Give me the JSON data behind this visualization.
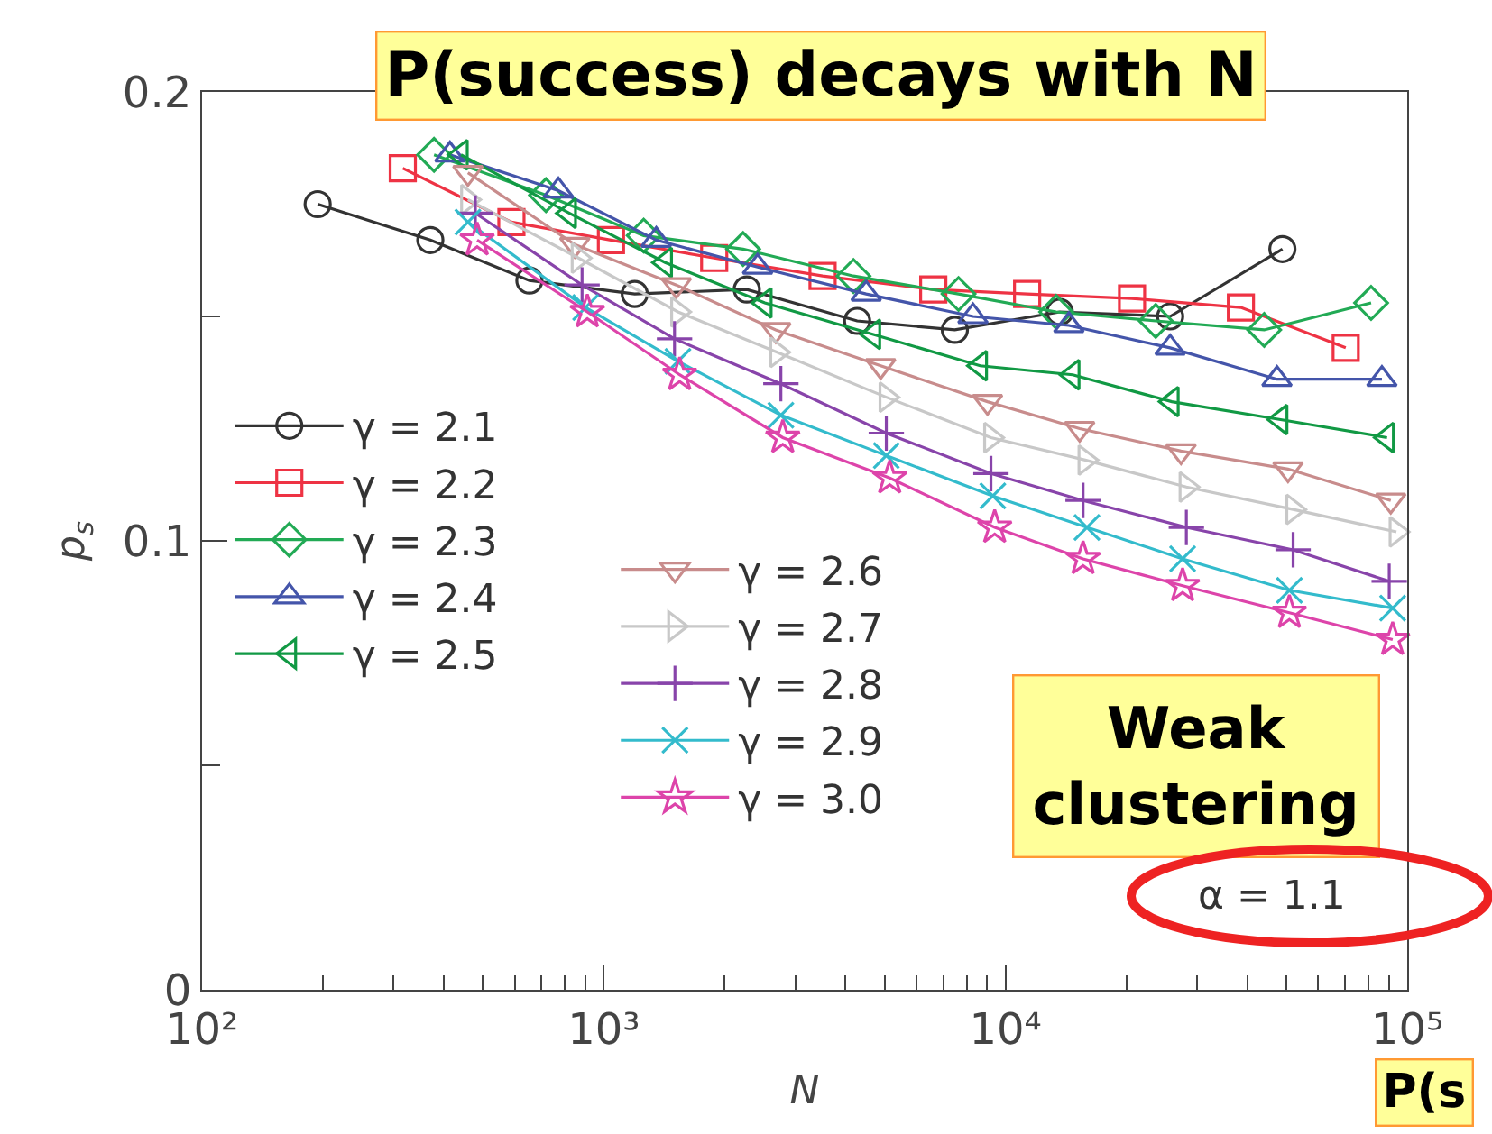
{
  "chart_data": {
    "type": "line",
    "title": "P(success) decays with N",
    "xlabel": "N",
    "ylabel": "p$_{s}$",
    "log": "x",
    "legend": "left",
    "grid": false,
    "xlim": [
      100,
      100000
    ],
    "xticks": [
      {
        "value": 100,
        "label": "10²"
      },
      {
        "value": 200,
        "label": null
      },
      {
        "value": 300,
        "label": null
      },
      {
        "value": 400,
        "label": null
      },
      {
        "value": 500,
        "label": null
      },
      {
        "value": 600,
        "label": null
      },
      {
        "value": 700,
        "label": null
      },
      {
        "value": 800,
        "label": null
      },
      {
        "value": 900,
        "label": null
      },
      {
        "value": 1000,
        "label": "10³"
      },
      {
        "value": 2000,
        "label": null
      },
      {
        "value": 3000,
        "label": null
      },
      {
        "value": 4000,
        "label": null
      },
      {
        "value": 5000,
        "label": null
      },
      {
        "value": 6000,
        "label": null
      },
      {
        "value": 7000,
        "label": null
      },
      {
        "value": 8000,
        "label": null
      },
      {
        "value": 9000,
        "label": null
      },
      {
        "value": 10000,
        "label": "10⁴"
      },
      {
        "value": 20000,
        "label": null
      },
      {
        "value": 30000,
        "label": null
      },
      {
        "value": 40000,
        "label": null
      },
      {
        "value": 50000,
        "label": null
      },
      {
        "value": 60000,
        "label": null
      },
      {
        "value": 70000,
        "label": null
      },
      {
        "value": 80000,
        "label": null
      },
      {
        "value": 90000,
        "label": null
      },
      {
        "value": 100000,
        "label": "10⁵"
      }
    ],
    "ylim": [
      0,
      0.2
    ],
    "yticks": [
      0,
      {
        "value": 0.05,
        "label": null
      },
      0.1,
      {
        "value": 0.15,
        "label": null
      },
      0.2
    ],
    "annotations": [
      "Weak clustering",
      "α = 1.1",
      "P(s"
    ],
    "series": [
      {
        "name": "γ = 2.1",
        "color": "#333333",
        "marker": "circle",
        "x": [
          194,
          370,
          653,
          1194,
          2270,
          4273,
          7480,
          13650,
          25700,
          48900
        ],
        "values": [
          0.175,
          0.167,
          0.158,
          0.155,
          0.156,
          0.149,
          0.147,
          0.151,
          0.15,
          0.165
        ]
      },
      {
        "name": "γ = 2.2",
        "color": "#ee3344",
        "marker": "square",
        "x": [
          316,
          589,
          1042,
          1883,
          3505,
          6610,
          11320,
          20650,
          38550,
          70300
        ],
        "values": [
          0.183,
          0.171,
          0.167,
          0.163,
          0.159,
          0.156,
          0.155,
          0.154,
          0.152,
          0.143
        ]
      },
      {
        "name": "γ = 2.3",
        "color": "#22aa55",
        "marker": "diamond",
        "x": [
          378,
          718,
          1257,
          2222,
          4184,
          7640,
          13370,
          23660,
          44060,
          81300
        ],
        "values": [
          0.186,
          0.177,
          0.168,
          0.165,
          0.159,
          0.155,
          0.151,
          0.149,
          0.147,
          0.153
        ]
      },
      {
        "name": "γ = 2.4",
        "color": "#4455aa",
        "marker": "triangle",
        "x": [
          414,
          771,
          1351,
          2415,
          4500,
          8300,
          14380,
          25700,
          47400,
          86500
        ],
        "values": [
          0.186,
          0.178,
          0.167,
          0.161,
          0.155,
          0.15,
          0.148,
          0.143,
          0.136,
          0.136
        ]
      },
      {
        "name": "γ = 2.5",
        "color": "#119944",
        "marker": "triangle-left",
        "x": [
          441,
          820,
          1422,
          2517,
          4690,
          8650,
          14700,
          25950,
          48400,
          89100
        ],
        "values": [
          0.186,
          0.173,
          0.162,
          0.153,
          0.146,
          0.139,
          0.137,
          0.131,
          0.127,
          0.123
        ]
      },
      {
        "name": "γ = 2.6",
        "color": "#c88c8c",
        "marker": "triangle-down",
        "x": [
          459,
          847,
          1515,
          2680,
          4890,
          9020,
          15300,
          27350,
          50500,
          91000
        ],
        "values": [
          0.182,
          0.166,
          0.157,
          0.147,
          0.139,
          0.131,
          0.125,
          0.12,
          0.116,
          0.109
        ]
      },
      {
        "name": "γ = 2.7",
        "color": "#c8c8c8",
        "marker": "triangle-right",
        "x": [
          459,
          865,
          1530,
          2700,
          5050,
          9200,
          15800,
          28200,
          52000,
          94000
        ],
        "values": [
          0.176,
          0.163,
          0.151,
          0.142,
          0.132,
          0.123,
          0.118,
          0.112,
          0.107,
          0.102
        ]
      },
      {
        "name": "γ = 2.8",
        "color": "#8844aa",
        "marker": "cross",
        "x": [
          479,
          883,
          1500,
          2760,
          5050,
          9200,
          15600,
          28200,
          52000,
          90200
        ],
        "values": [
          0.173,
          0.157,
          0.145,
          0.135,
          0.124,
          0.115,
          0.109,
          0.103,
          0.098,
          0.091
        ]
      },
      {
        "name": "γ = 2.9",
        "color": "#33bbcc",
        "marker": "x",
        "x": [
          459,
          901,
          1530,
          2760,
          5050,
          9300,
          15950,
          27600,
          50900,
          92000
        ],
        "values": [
          0.171,
          0.152,
          0.14,
          0.128,
          0.119,
          0.11,
          0.103,
          0.096,
          0.089,
          0.085
        ]
      },
      {
        "name": "γ = 3.0",
        "color": "#dd44aa",
        "marker": "star",
        "x": [
          484,
          910,
          1545,
          2790,
          5150,
          9400,
          15600,
          27600,
          50900,
          92000
        ],
        "values": [
          0.167,
          0.151,
          0.137,
          0.123,
          0.114,
          0.103,
          0.096,
          0.09,
          0.084,
          0.078
        ]
      }
    ]
  }
}
